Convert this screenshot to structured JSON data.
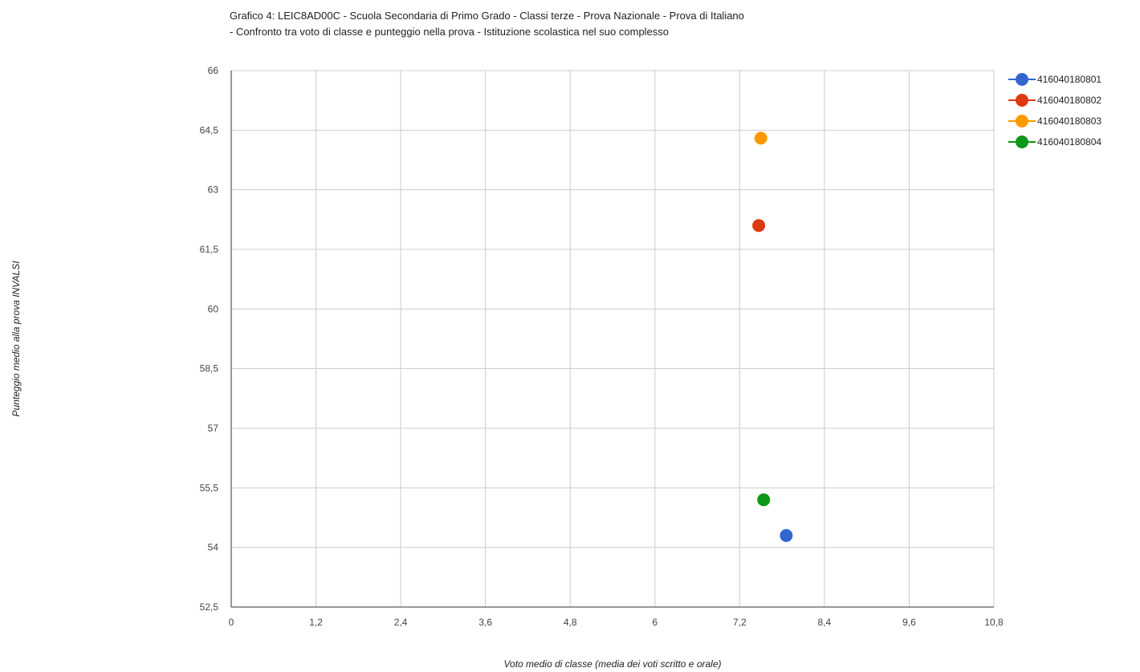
{
  "chart_data": {
    "type": "scatter",
    "title_line1": "Grafico 4: LEIC8AD00C - Scuola Secondaria di Primo Grado - Classi terze - Prova Nazionale - Prova di Italiano",
    "title_line2": "- Confronto tra voto di classe e punteggio nella prova - Istituzione scolastica nel suo complesso",
    "xlabel": "Voto medio di classe (media dei voti scritto e orale)",
    "ylabel": "Punteggio medio alla prova INVALSI",
    "xlim": [
      0,
      10.8
    ],
    "ylim": [
      52.5,
      66
    ],
    "x_ticks": [
      "0",
      "1,2",
      "2,4",
      "3,6",
      "4,8",
      "6",
      "7,2",
      "8,4",
      "9,6",
      "10,8"
    ],
    "y_ticks": [
      "66",
      "64,5",
      "63",
      "61,5",
      "60",
      "58,5",
      "57",
      "55,5",
      "54",
      "52,5"
    ],
    "grid": true,
    "legend_position": "right",
    "series": [
      {
        "name": "416040180801",
        "color": "#3366cc",
        "points": [
          {
            "x": 7.86,
            "y": 54.3
          }
        ]
      },
      {
        "name": "416040180802",
        "color": "#dc3912",
        "points": [
          {
            "x": 7.47,
            "y": 62.1
          }
        ]
      },
      {
        "name": "416040180803",
        "color": "#ff9900",
        "points": [
          {
            "x": 7.5,
            "y": 64.3
          }
        ]
      },
      {
        "name": "416040180804",
        "color": "#109618",
        "points": [
          {
            "x": 7.54,
            "y": 55.2
          }
        ]
      }
    ]
  }
}
